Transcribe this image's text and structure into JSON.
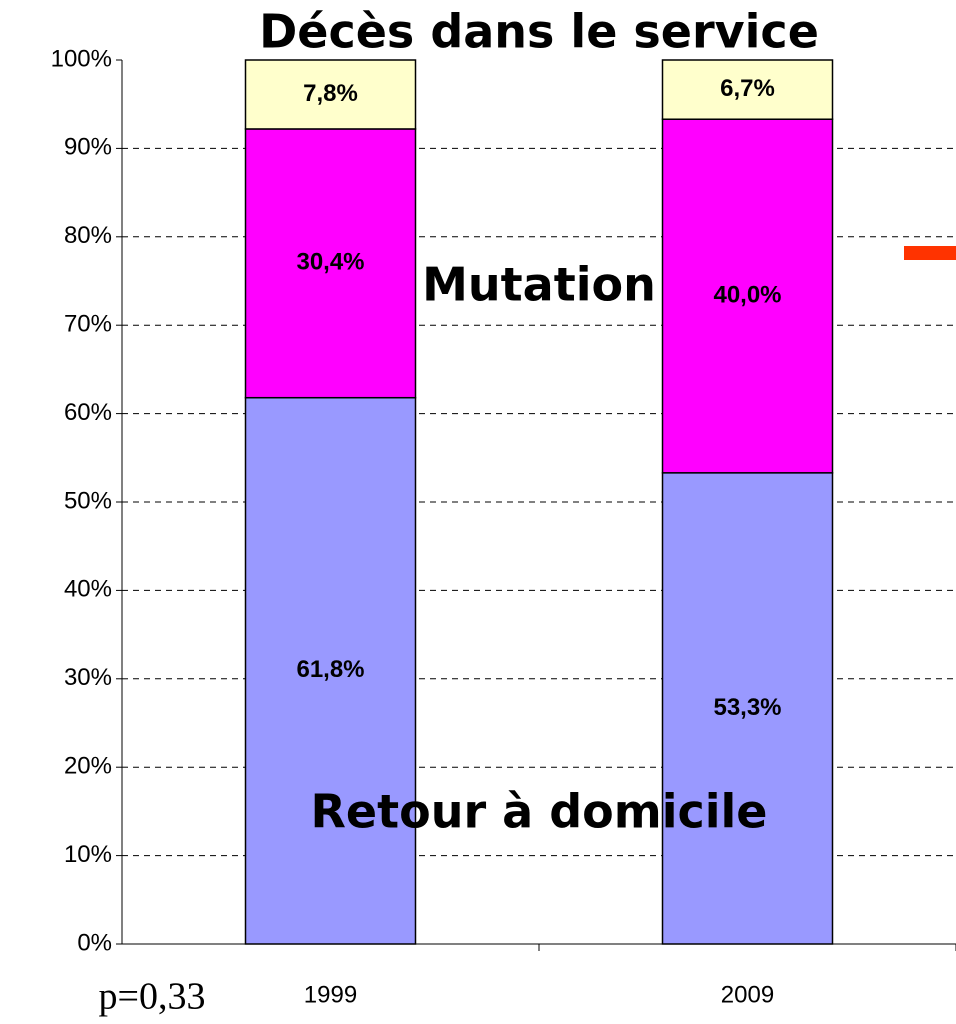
{
  "chart_data": {
    "type": "stacked_bar",
    "categories": [
      "1999",
      "2009"
    ],
    "series": [
      {
        "name": "Retour à domicile",
        "color": "#9999ff",
        "values": [
          61.8,
          53.3
        ],
        "value_labels": [
          "61,8%",
          "53,3%"
        ]
      },
      {
        "name": "Mutation",
        "color": "#ff00ff",
        "values": [
          30.4,
          40.0
        ],
        "value_labels": [
          "30,4%",
          "40,0%"
        ]
      },
      {
        "name": "Décès dans le service",
        "color": "#ffffcc",
        "values": [
          7.8,
          6.7
        ],
        "value_labels": [
          "7,8%",
          "6,7%"
        ]
      }
    ],
    "ylim": [
      0,
      100
    ],
    "yticks": [
      {
        "value": 0,
        "label": "0%"
      },
      {
        "value": 10,
        "label": "10%"
      },
      {
        "value": 20,
        "label": "20%"
      },
      {
        "value": 30,
        "label": "30%"
      },
      {
        "value": 40,
        "label": "40%"
      },
      {
        "value": 50,
        "label": "50%"
      },
      {
        "value": 60,
        "label": "60%"
      },
      {
        "value": 70,
        "label": "70%"
      },
      {
        "value": 80,
        "label": "80%"
      },
      {
        "value": 90,
        "label": "90%"
      },
      {
        "value": 100,
        "label": "100%"
      }
    ],
    "grid": true,
    "annotation": "p=0,33"
  }
}
